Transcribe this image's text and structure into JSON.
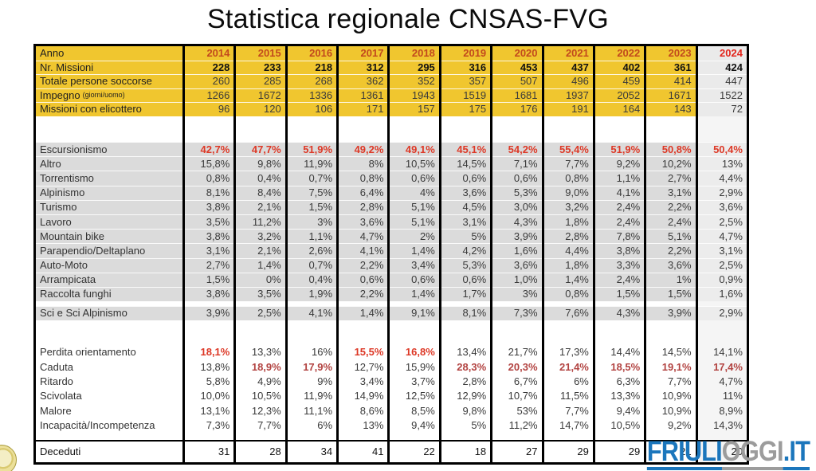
{
  "title": "Statistica regionale CNSAS-FVG",
  "watermark": {
    "friuli": "FRIULI",
    "oggi": "OGGI",
    "it": ".IT"
  },
  "colors": {
    "header_bg": "#F0C62F",
    "header_bg_2024": "#EAEAEA",
    "activity_bg": "#DBDBDB",
    "activity_bg_2024": "#ECECEC",
    "plain_bg": "#FFFFFF",
    "plain_bg_2024": "#F5F5F5",
    "year_text": "#C2491D",
    "year_2024_text": "#E2251C",
    "red_bright": "#DD3826",
    "red_dark": "#B24341",
    "value_text": "#3A3A3A",
    "label_text": "#333333",
    "bold_text": "#111111",
    "watermark_blue": "#1B76BC",
    "watermark_gray": "#9C9C9C"
  },
  "chart_data": {
    "type": "table",
    "title": "Statistica regionale CNSAS-FVG",
    "year_header_label": "Anno",
    "years": [
      "2014",
      "2015",
      "2016",
      "2017",
      "2018",
      "2019",
      "2020",
      "2021",
      "2022",
      "2023",
      "2024"
    ],
    "sections": [
      {
        "name": "header",
        "rows": [
          {
            "label": "Nr. Missioni",
            "bold": true,
            "values": [
              "228",
              "233",
              "218",
              "312",
              "295",
              "316",
              "453",
              "437",
              "402",
              "361",
              "424"
            ]
          },
          {
            "label": "Totale persone soccorse",
            "values": [
              "260",
              "285",
              "268",
              "362",
              "352",
              "357",
              "507",
              "496",
              "459",
              "414",
              "447"
            ]
          },
          {
            "label": "Impegno",
            "label_note": "(giorni/uomo)",
            "values": [
              "1266",
              "1672",
              "1336",
              "1361",
              "1943",
              "1519",
              "1681",
              "1937",
              "2052",
              "1671",
              "1522"
            ]
          },
          {
            "label": "Missioni con elicottero",
            "values": [
              "96",
              "120",
              "106",
              "171",
              "157",
              "175",
              "176",
              "191",
              "164",
              "143",
              "72"
            ]
          }
        ]
      },
      {
        "name": "activities",
        "rows": [
          {
            "label": "Escursionismo",
            "red": "all",
            "red_style": "bright",
            "values": [
              "42,7%",
              "47,7%",
              "51,9%",
              "49,2%",
              "49,1%",
              "45,1%",
              "54,2%",
              "55,4%",
              "51,9%",
              "50,8%",
              "50,4%"
            ]
          },
          {
            "label": "Altro",
            "values": [
              "15,8%",
              "9,8%",
              "11,9%",
              "8%",
              "10,5%",
              "14,5%",
              "7,1%",
              "7,7%",
              "9,2%",
              "10,2%",
              "13%"
            ]
          },
          {
            "label": "Torrentismo",
            "values": [
              "0,8%",
              "0,4%",
              "0,7%",
              "0,8%",
              "0,6%",
              "0,6%",
              "0,6%",
              "0,8%",
              "1,1%",
              "2,7%",
              "4,4%"
            ]
          },
          {
            "label": "Alpinismo",
            "values": [
              "8,1%",
              "8,4%",
              "7,5%",
              "6,4%",
              "4%",
              "3,6%",
              "5,3%",
              "9,0%",
              "4,1%",
              "3,1%",
              "2,9%"
            ]
          },
          {
            "label": "Turismo",
            "values": [
              "3,8%",
              "2,1%",
              "1,5%",
              "2,8%",
              "5,1%",
              "4,5%",
              "3,0%",
              "3,2%",
              "2,4%",
              "2,2%",
              "3,6%"
            ]
          },
          {
            "label": "Lavoro",
            "values": [
              "3,5%",
              "11,2%",
              "3%",
              "3,6%",
              "5,1%",
              "3,1%",
              "4,3%",
              "1,8%",
              "2,4%",
              "2,4%",
              "2,5%"
            ]
          },
          {
            "label": "Mountain bike",
            "values": [
              "3,8%",
              "3,2%",
              "1,1%",
              "4,7%",
              "2%",
              "5%",
              "3,9%",
              "2,8%",
              "7,8%",
              "5,1%",
              "4,7%"
            ]
          },
          {
            "label": "Parapendio/Deltaplano",
            "values": [
              "3,1%",
              "2,1%",
              "2,6%",
              "4,1%",
              "1,4%",
              "4,2%",
              "1,6%",
              "4,4%",
              "3,8%",
              "2,2%",
              "3,1%"
            ]
          },
          {
            "label": "Auto-Moto",
            "values": [
              "2,7%",
              "1,4%",
              "0,7%",
              "2,2%",
              "3,4%",
              "5,3%",
              "3,6%",
              "1,8%",
              "3,3%",
              "3,6%",
              "2,5%"
            ]
          },
          {
            "label": "Arrampicata",
            "values": [
              "1,5%",
              "0%",
              "0,4%",
              "0,6%",
              "0,6%",
              "0,6%",
              "1,0%",
              "1,4%",
              "2,4%",
              "1%",
              "0,9%"
            ]
          },
          {
            "label": "Raccolta funghi",
            "values": [
              "3,8%",
              "3,5%",
              "1,9%",
              "2,2%",
              "1,4%",
              "1,7%",
              "3%",
              "0,8%",
              "1,5%",
              "1,5%",
              "1,6%"
            ]
          },
          {
            "label": "Sci e Sci Alpinismo",
            "gap_before": 5.5,
            "values": [
              "3,9%",
              "2,5%",
              "4,1%",
              "1,4%",
              "9,1%",
              "8,1%",
              "7,3%",
              "7,6%",
              "4,3%",
              "3,9%",
              "2,9%"
            ]
          }
        ]
      },
      {
        "name": "causes",
        "rows": [
          {
            "label": "Perdita orientamento",
            "red": [
              0,
              3,
              4
            ],
            "red_style": "bright",
            "values": [
              "18,1%",
              "13,3%",
              "16%",
              "15,5%",
              "16,8%",
              "13,4%",
              "21,7%",
              "17,3%",
              "14,4%",
              "14,5%",
              "14,1%"
            ]
          },
          {
            "label": "Caduta",
            "red": [
              1,
              2,
              5,
              6,
              7,
              8,
              9,
              10
            ],
            "red_style": "dark",
            "values": [
              "13,8%",
              "18,9%",
              "17,9%",
              "12,7%",
              "15,9%",
              "28,3%",
              "20,3%",
              "21,4%",
              "18,5%",
              "19,1%",
              "17,4%"
            ]
          },
          {
            "label": "Ritardo",
            "values": [
              "5,8%",
              "4,9%",
              "9%",
              "3,4%",
              "3,7%",
              "2,8%",
              "6,7%",
              "6%",
              "6,3%",
              "7,7%",
              "4,7%"
            ]
          },
          {
            "label": "Scivolata",
            "values": [
              "10,0%",
              "10,5%",
              "11,9%",
              "14,9%",
              "12,5%",
              "12,9%",
              "10,7%",
              "11,5%",
              "13,3%",
              "10,9%",
              "11%"
            ]
          },
          {
            "label": "Malore",
            "values": [
              "13,1%",
              "12,3%",
              "11,1%",
              "8,6%",
              "8,5%",
              "9,8%",
              "53%",
              "7,7%",
              "9,4%",
              "10,9%",
              "8,9%"
            ]
          },
          {
            "label": "Incapacità/Incompetenza",
            "values": [
              "7,3%",
              "7,7%",
              "6%",
              "13%",
              "9,4%",
              "5%",
              "11,2%",
              "14,7%",
              "10,5%",
              "9,2%",
              "14,3%"
            ]
          }
        ]
      },
      {
        "name": "deceased",
        "rows": [
          {
            "label": "Deceduti",
            "values": [
              "31",
              "28",
              "34",
              "41",
              "22",
              "18",
              "27",
              "29",
              "29",
              "21",
              "20"
            ]
          }
        ]
      }
    ]
  }
}
